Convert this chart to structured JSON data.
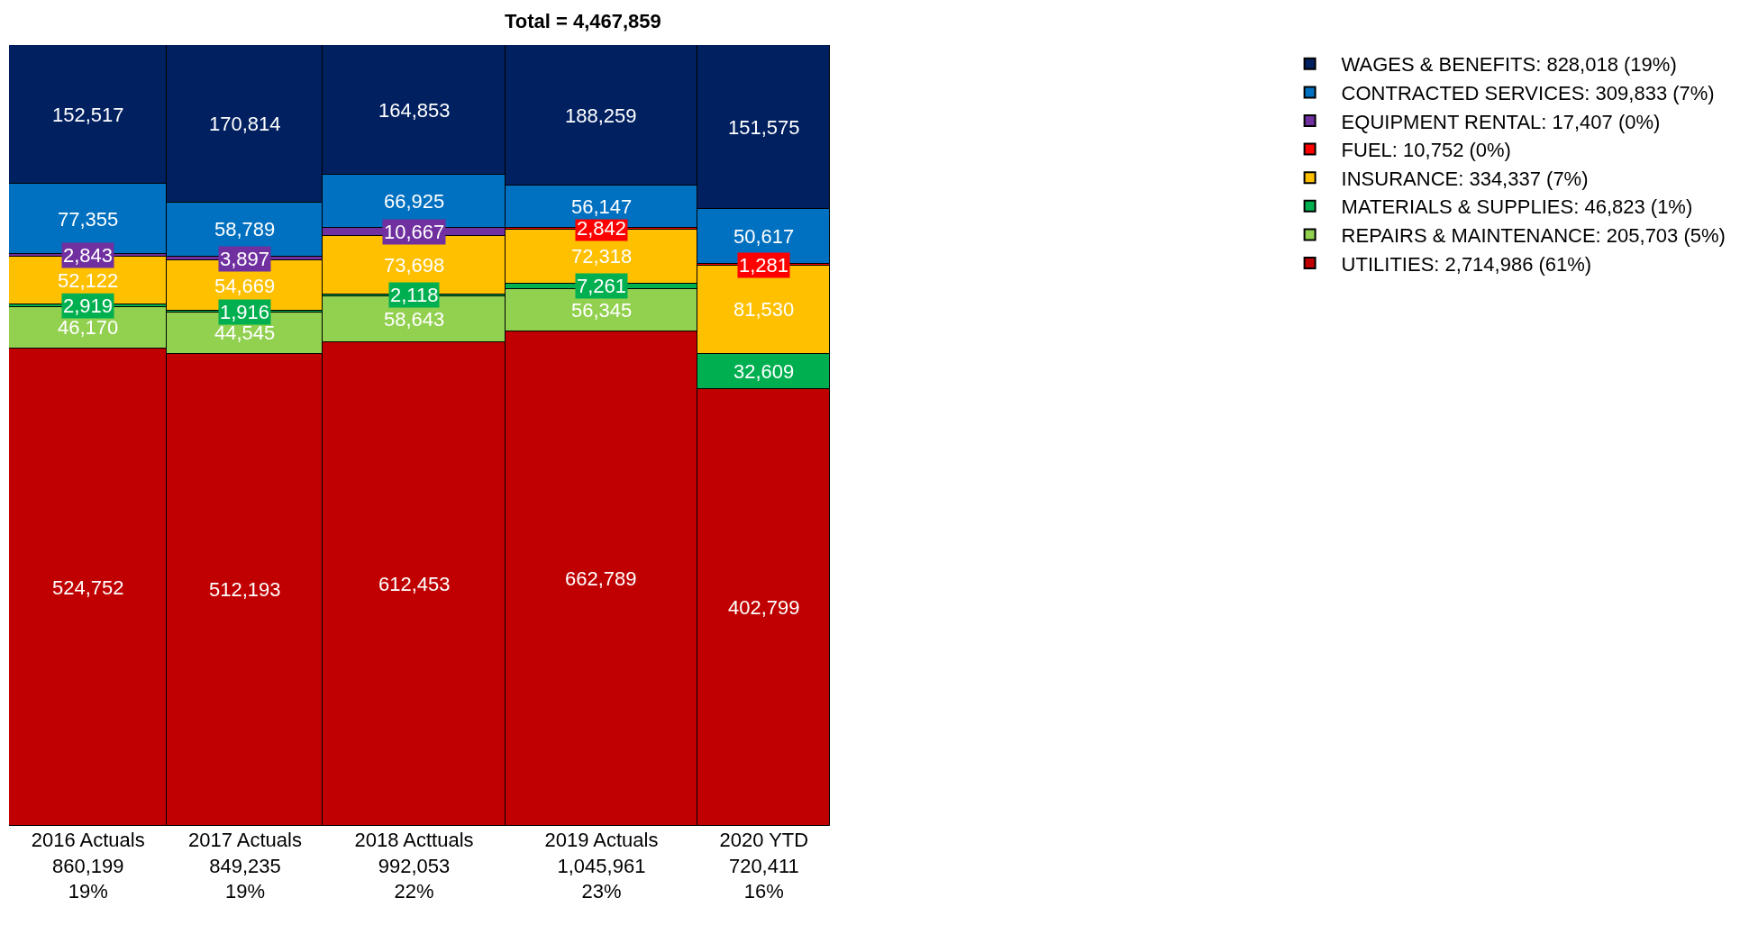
{
  "chart_data": {
    "type": "other",
    "title": "Total = 4,467,859",
    "categories": [
      "2016 Actuals",
      "2017 Actuals",
      "2018 Acttuals",
      "2019 Actuals",
      "2020 YTD"
    ],
    "totals": [
      "860,199",
      "849,235",
      "992,053",
      "1,045,961",
      "720,411"
    ],
    "annotations": [
      "19%",
      "19%",
      "22%",
      "23%",
      "16%"
    ],
    "legend": "right",
    "series": [
      {
        "name": "UTILITIES: 2,714,986 (61%)",
        "color": "#c00000",
        "values": [
          524752,
          512193,
          612453,
          662789,
          402799
        ],
        "value_labels": [
          "524,752",
          "512,193",
          "612,453",
          "662,789",
          "402,799"
        ]
      },
      {
        "name": "REPAIRS & MAINTENANCE: 205,703 (5%)",
        "color": "#92d050",
        "values": [
          46170,
          44545,
          58643,
          56345,
          null
        ],
        "value_labels": [
          "46,170",
          "44,545",
          "58,643",
          "56,345",
          null
        ]
      },
      {
        "name": "MATERIALS & SUPPLIES: 46,823 (1%)",
        "color": "#00b050",
        "values": [
          2919,
          1916,
          2118,
          7261,
          32609
        ],
        "value_labels": [
          "2,919",
          "1,916",
          "2,118",
          "7,261",
          "32,609"
        ]
      },
      {
        "name": "INSURANCE: 334,337 (7%)",
        "color": "#ffc000",
        "values": [
          52122,
          54669,
          73698,
          72318,
          81530
        ],
        "value_labels": [
          "52,122",
          "54,669",
          "73,698",
          "72,318",
          "81,530"
        ]
      },
      {
        "name": "FUEL: 10,752 (0%)",
        "color": "#ff0000",
        "values": [
          null,
          null,
          null,
          2842,
          1281
        ],
        "value_labels": [
          null,
          null,
          null,
          "2,842",
          "1,281"
        ]
      },
      {
        "name": "EQUIPMENT RENTAL: 17,407 (0%)",
        "color": "#7030a0",
        "values": [
          2843,
          3897,
          10667,
          null,
          null
        ],
        "value_labels": [
          "2,843",
          "3,897",
          "10,667",
          null,
          null
        ]
      },
      {
        "name": "CONTRACTED SERVICES: 309,833 (7%)",
        "color": "#0070c0",
        "values": [
          77355,
          58789,
          66925,
          56147,
          50617
        ],
        "value_labels": [
          "77,355",
          "58,789",
          "66,925",
          "56,147",
          "50,617"
        ]
      },
      {
        "name": "WAGES & BENEFITS: 828,018 (19%)",
        "color": "#002060",
        "values": [
          152517,
          170814,
          164853,
          188259,
          151575
        ],
        "value_labels": [
          "152,517",
          "170,814",
          "164,853",
          "188,259",
          "151,575"
        ]
      }
    ]
  }
}
